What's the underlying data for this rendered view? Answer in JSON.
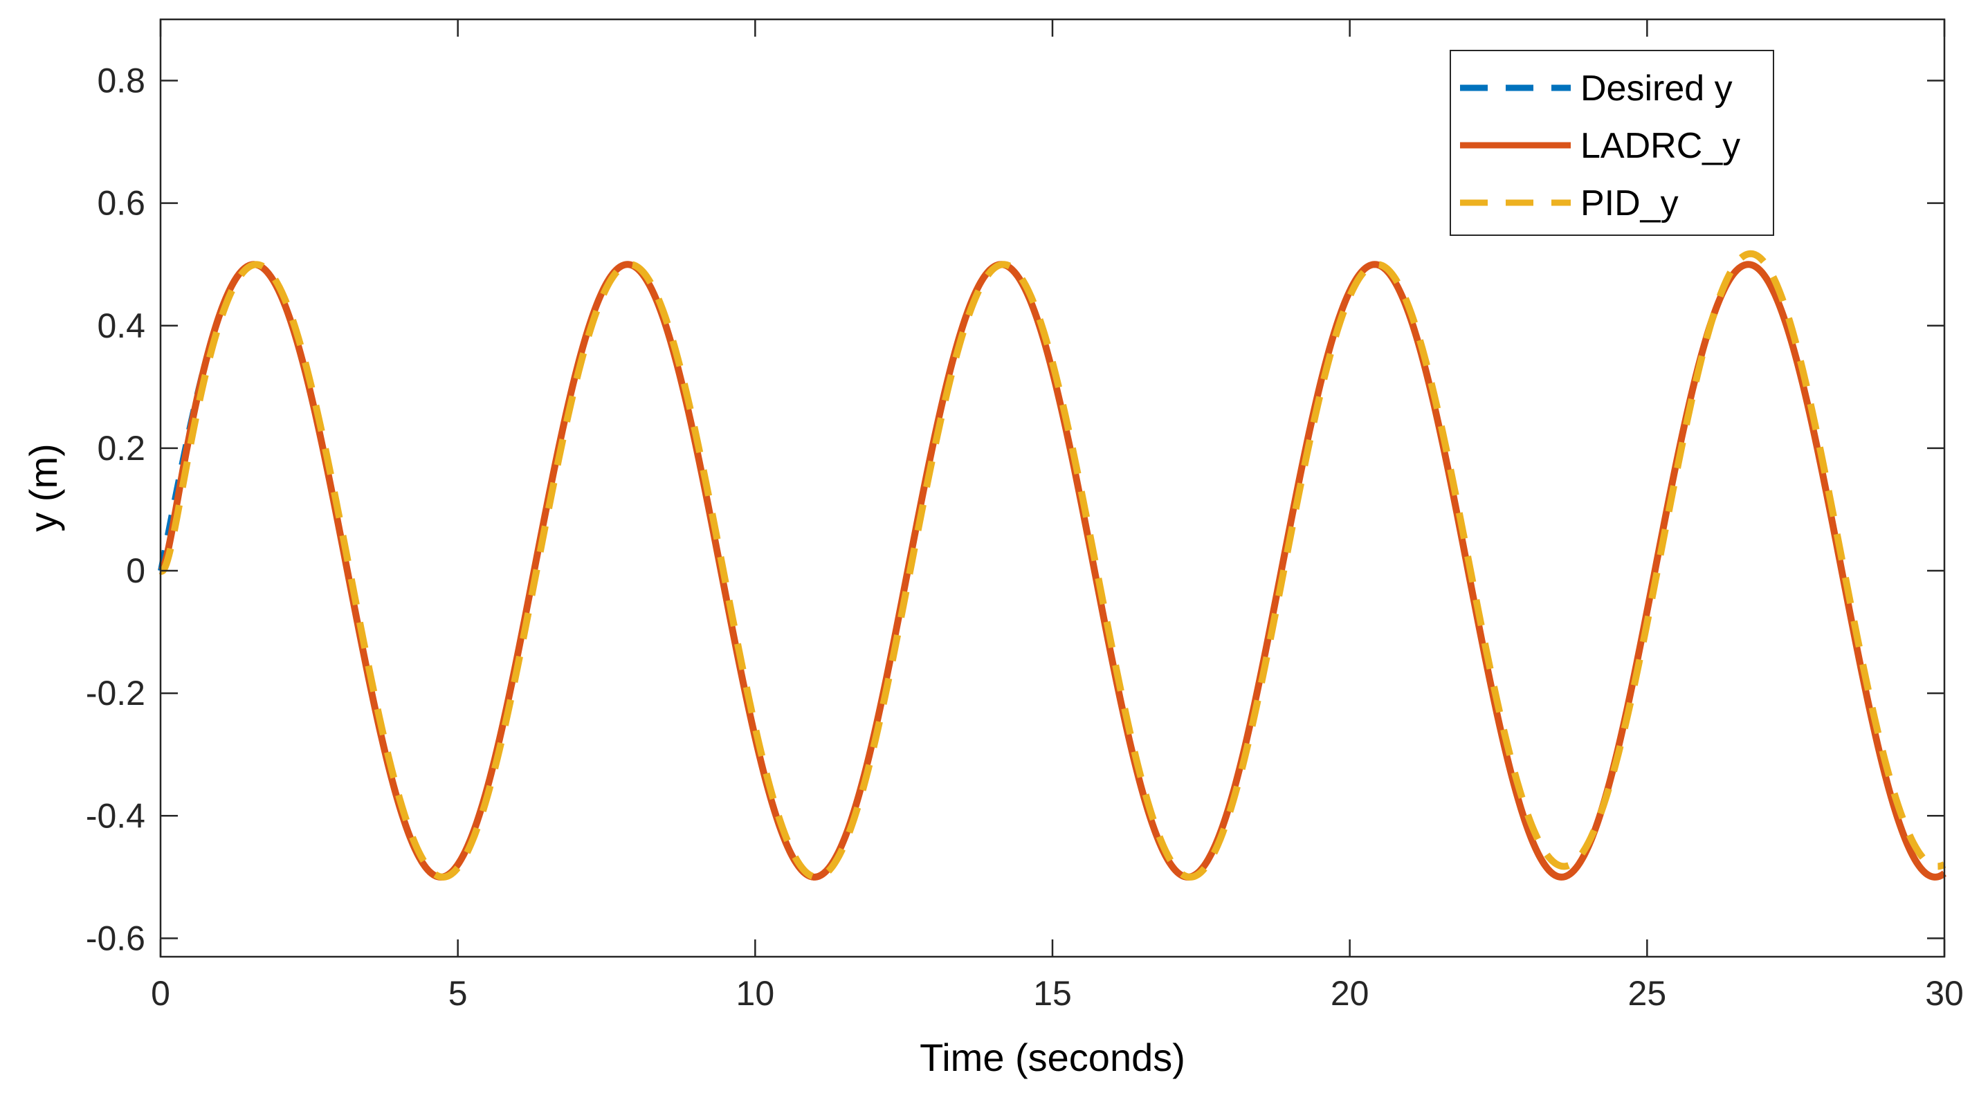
{
  "chart_data": {
    "type": "line",
    "title": "",
    "xlabel": "Time (seconds)",
    "ylabel": "y (m)",
    "xlim": [
      0,
      30
    ],
    "ylim": [
      -0.63,
      0.9
    ],
    "xticks": [
      0,
      5,
      10,
      15,
      20,
      25,
      30
    ],
    "xtick_labels": [
      "0",
      "5",
      "10",
      "15",
      "20",
      "25",
      "30"
    ],
    "yticks": [
      0.8,
      0.6,
      0.4,
      0.2,
      0,
      -0.2,
      -0.4,
      -0.6
    ],
    "ytick_labels": [
      "0.8",
      "0.6",
      "0.4",
      "0.2",
      "0",
      "-0.2",
      "-0.4",
      "-0.6"
    ],
    "grid": false,
    "legend_position": "top-right",
    "signal": {
      "amplitude": 0.5,
      "period": 6.283,
      "start": 0,
      "end": 30
    },
    "series": [
      {
        "name": "Desired y",
        "color": "#0072BD",
        "style": "dashed"
      },
      {
        "name": "LADRC_y",
        "color": "#D95319",
        "style": "solid"
      },
      {
        "name": "PID_y",
        "color": "#EDB120",
        "style": "dashed"
      }
    ]
  }
}
